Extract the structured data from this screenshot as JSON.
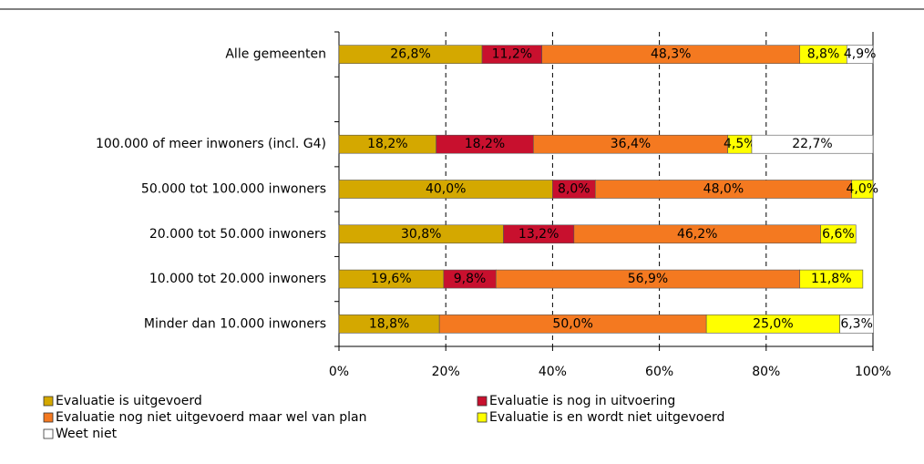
{
  "chart_data": {
    "type": "stacked-bar-horizontal",
    "categories": [
      "Alle gemeenten",
      null,
      "100.000 of meer inwoners (incl. G4)",
      "50.000 tot 100.000 inwoners",
      "20.000 tot 50.000 inwoners",
      "10.000 tot 20.000 inwoners",
      "Minder dan 10.000 inwoners"
    ],
    "series": [
      {
        "name": "Evaluatie is uitgevoerd",
        "color": "#d4a800",
        "values": [
          26.8,
          null,
          18.2,
          40.0,
          30.8,
          19.6,
          18.8
        ],
        "value_labels": [
          "26,8%",
          null,
          "18,2%",
          "40,0%",
          "30,8%",
          "19,6%",
          "18,8%"
        ]
      },
      {
        "name": "Evaluatie is nog in uitvoering",
        "color": "#c8102e",
        "values": [
          11.2,
          null,
          18.2,
          8.0,
          13.2,
          9.8,
          null
        ],
        "value_labels": [
          "11,2%",
          null,
          "18,2%",
          "8,0%",
          "13,2%",
          "9,8%",
          null
        ]
      },
      {
        "name": "Evaluatie nog niet uitgevoerd maar wel van plan",
        "color": "#f47920",
        "values": [
          48.3,
          null,
          36.4,
          48.0,
          46.2,
          56.9,
          50.0
        ],
        "value_labels": [
          "48,3%",
          null,
          "36,4%",
          "48,0%",
          "46,2%",
          "56,9%",
          "50,0%"
        ]
      },
      {
        "name": "Evaluatie is en wordt niet uitgevoerd",
        "color": "#ffff00",
        "values": [
          8.8,
          null,
          4.5,
          4.0,
          6.6,
          11.8,
          25.0
        ],
        "value_labels": [
          "8,8%",
          null,
          "4,5%",
          "4,0%",
          "6,6%",
          "11,8%",
          "25,0%"
        ]
      },
      {
        "name": "Weet niet",
        "color": "#ffffff",
        "values": [
          4.9,
          null,
          22.7,
          null,
          null,
          null,
          6.3
        ],
        "value_labels": [
          "4,9%",
          null,
          "22,7%",
          null,
          null,
          null,
          "6,3%"
        ]
      }
    ],
    "xlim": [
      0,
      100
    ],
    "xticks": [
      {
        "value": 0,
        "label": "0%"
      },
      {
        "value": 20,
        "label": "20%"
      },
      {
        "value": 40,
        "label": "40%"
      },
      {
        "value": 60,
        "label": "60%"
      },
      {
        "value": 80,
        "label": "80%"
      },
      {
        "value": 100,
        "label": "100%"
      }
    ],
    "grid": true,
    "legend": "bottom"
  }
}
